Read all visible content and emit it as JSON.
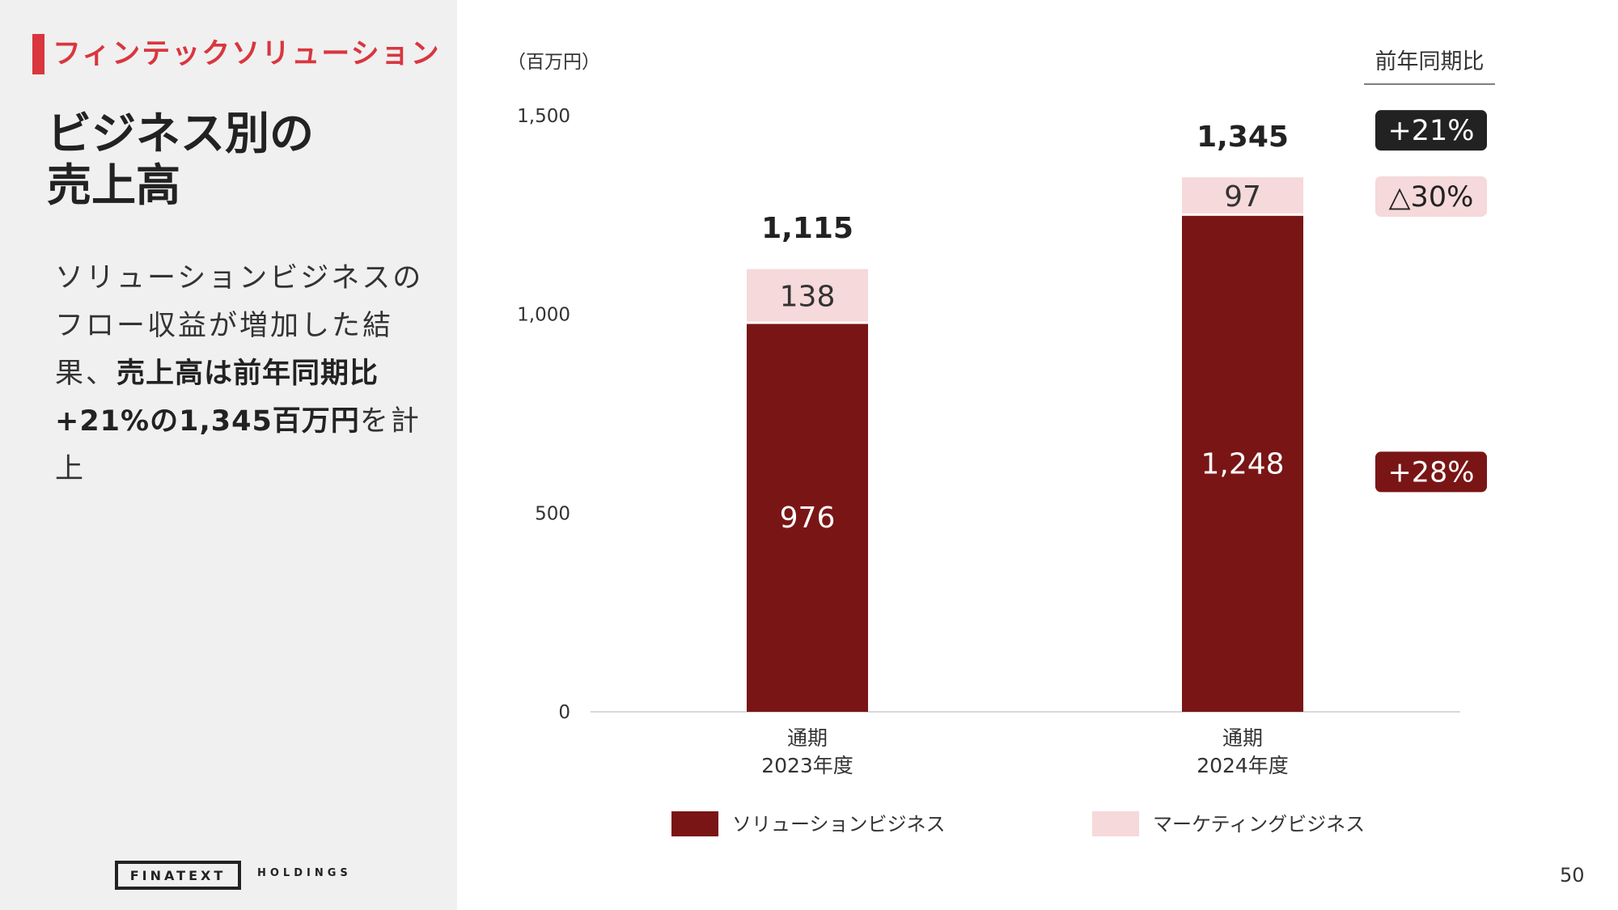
{
  "section": {
    "label": "フィンテックソリューション",
    "accent": "#d9363e"
  },
  "title": {
    "line1": "ビジネス別の",
    "line2": "売上高"
  },
  "summary": {
    "part1": "ソリューションビジネスのフロー収益が増加した結果、",
    "bold": "売上高は前年同期比+21%の1,345百万円",
    "part2": "を計上"
  },
  "logo": {
    "name": "FINATEXT",
    "sub": "HOLDINGS"
  },
  "page_number": "50",
  "yoy": {
    "header": "前年同期比",
    "items": [
      {
        "text": "+21%",
        "applies_to": "total",
        "bg": "#222222",
        "fg": "#ffffff"
      },
      {
        "text": "△30%",
        "applies_to": "マーケティングビジネス",
        "bg": "#f6d9da",
        "fg": "#222222"
      },
      {
        "text": "+28%",
        "applies_to": "ソリューションビジネス",
        "bg": "#7a1516",
        "fg": "#ffffff"
      }
    ]
  },
  "chart_data": {
    "type": "bar",
    "stacked": true,
    "unit_label": "（百万円）",
    "categories": [
      [
        "通期",
        "2023年度"
      ],
      [
        "通期",
        "2024年度"
      ]
    ],
    "series": [
      {
        "name": "ソリューションビジネス",
        "values": [
          976,
          1248
        ],
        "color": "#7a1516",
        "label_color": "#ffffff"
      },
      {
        "name": "マーケティングビジネス",
        "values": [
          138,
          97
        ],
        "color": "#f6d9da",
        "label_color": "#333333"
      }
    ],
    "totals": [
      1115,
      1345
    ],
    "value_labels": [
      [
        "976",
        "138"
      ],
      [
        "1,248",
        "97"
      ]
    ],
    "total_labels": [
      "1,115",
      "1,345"
    ],
    "ylim": [
      0,
      1500
    ],
    "yticks": [
      0,
      500,
      1000,
      1500
    ],
    "ytick_labels": [
      "0",
      "500",
      "1,000",
      "1,500"
    ],
    "grid": false,
    "legend_position": "bottom"
  }
}
